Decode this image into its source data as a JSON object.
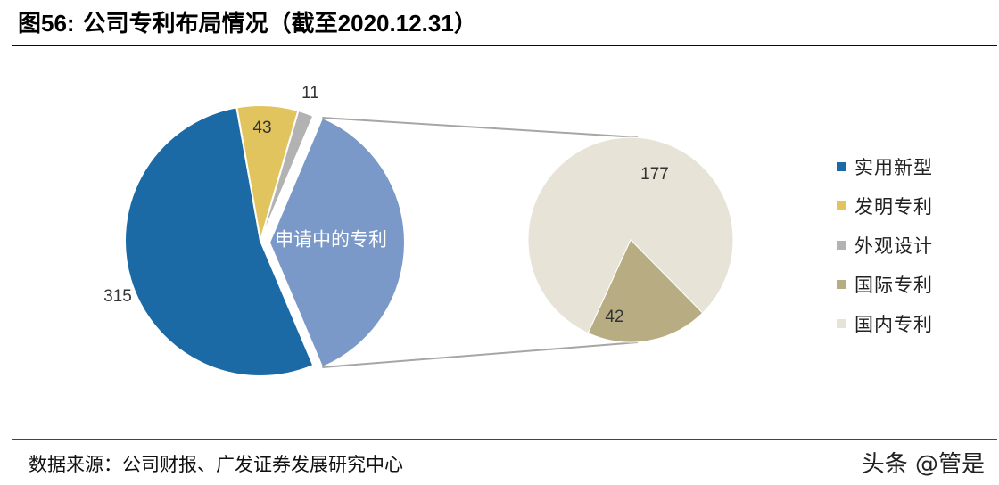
{
  "title": {
    "prefix": "图",
    "number": "56:",
    "text": "公司专利布局情况（截至",
    "date": "2020.12.31",
    "suffix": "）"
  },
  "chart_data": {
    "type": "pie",
    "title": "公司专利布局情况（截至2020.12.31）",
    "main_pie": {
      "slices": [
        {
          "label": "实用新型",
          "value": 315,
          "value_label": "315",
          "color": "#1B6AA5"
        },
        {
          "label": "发明专利",
          "value": 43,
          "value_label": "43",
          "color": "#E2C45E"
        },
        {
          "label": "外观设计",
          "value": 11,
          "value_label": "11",
          "color": "#B2B2B2"
        },
        {
          "label": "申请中的专利",
          "value": 219,
          "value_label": "申请中的专利",
          "color": "#7A99C8"
        }
      ]
    },
    "sub_pie": {
      "slices": [
        {
          "label": "国内专利",
          "value": 177,
          "value_label": "177",
          "color": "#E8E3D7"
        },
        {
          "label": "国际专利",
          "value": 42,
          "value_label": "42",
          "color": "#B8AD82"
        }
      ]
    },
    "legend": [
      {
        "label": "实用新型",
        "color": "#1B6AA5"
      },
      {
        "label": "发明专利",
        "color": "#E2C45E"
      },
      {
        "label": "外观设计",
        "color": "#B2B2B2"
      },
      {
        "label": "国际专利",
        "color": "#B8AD82"
      },
      {
        "label": "国内专利",
        "color": "#E8E3D7"
      }
    ]
  },
  "source": "数据来源：公司财报、广发证券发展研究中心",
  "watermark": "头条 @管是"
}
